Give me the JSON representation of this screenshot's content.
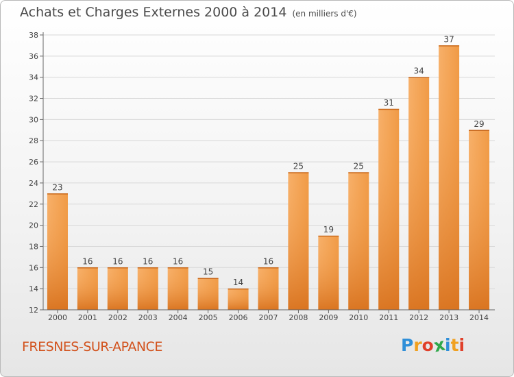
{
  "header": {
    "title": "Achats et Charges Externes 2000 à 2014",
    "subtitle": "(en milliers d'€)"
  },
  "footer": {
    "place": "FRESNES-SUR-APANCE",
    "logo": [
      "P",
      "r",
      "o",
      "x",
      "i",
      "t",
      "i"
    ],
    "logo_colors": [
      "#2f8fd8",
      "#f0a020",
      "#e0402a",
      "#2fa84a",
      "#2f8fd8",
      "#f0a020",
      "#e0402a"
    ]
  },
  "colors": {
    "bar_light": "#f6a655",
    "bar_dark": "#d9741f",
    "axis": "#666666",
    "grid": "#d7d7d7"
  },
  "chart_data": {
    "type": "bar",
    "title": "Achats et Charges Externes 2000 à 2014",
    "subtitle": "(en milliers d'€)",
    "categories": [
      "2000",
      "2001",
      "2002",
      "2003",
      "2004",
      "2005",
      "2006",
      "2007",
      "2008",
      "2009",
      "2010",
      "2011",
      "2012",
      "2013",
      "2014"
    ],
    "values": [
      23,
      16,
      16,
      16,
      16,
      15,
      14,
      16,
      25,
      19,
      25,
      31,
      34,
      37,
      29
    ],
    "ylim": [
      12,
      38
    ],
    "yticks": [
      12,
      14,
      16,
      18,
      20,
      22,
      24,
      26,
      28,
      30,
      32,
      34,
      36,
      38
    ],
    "grid": true
  }
}
